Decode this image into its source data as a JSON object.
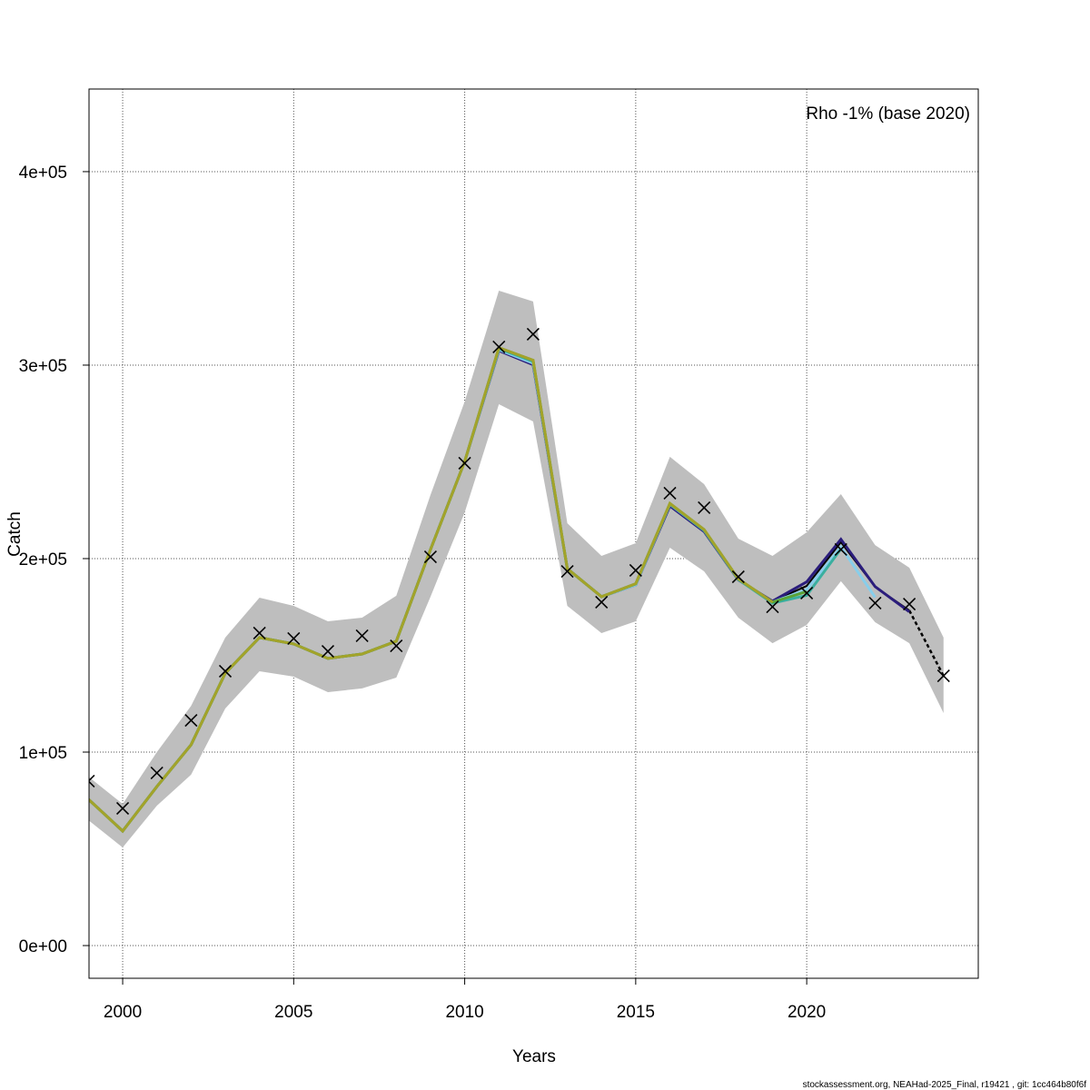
{
  "chart_data": {
    "type": "line",
    "title": "",
    "xlabel": "Years",
    "ylabel": "Catch",
    "xlim": [
      1999,
      2025
    ],
    "ylim": [
      -16900,
      442700
    ],
    "grid": true,
    "x_ticks": [
      2000,
      2005,
      2010,
      2015,
      2020
    ],
    "x_tick_labels": [
      "2000",
      "2005",
      "2010",
      "2015",
      "2020"
    ],
    "y_ticks": [
      0,
      100000,
      200000,
      300000,
      400000
    ],
    "y_tick_labels": [
      "0e+00",
      "1e+05",
      "2e+05",
      "3e+05",
      "4e+05"
    ],
    "annotation": "Rho -1% (base 2020)",
    "footer": "stockassessment.org, NEAHad-2025_Final, r19421 , git: 1cc464b80f6f",
    "years": [
      1999,
      2000,
      2001,
      2002,
      2003,
      2004,
      2005,
      2006,
      2007,
      2008,
      2009,
      2010,
      2011,
      2012,
      2013,
      2014,
      2015,
      2016,
      2017,
      2018,
      2019,
      2020,
      2021,
      2022,
      2023,
      2024
    ],
    "observed": [
      85000,
      70900,
      89200,
      116400,
      141800,
      161500,
      158700,
      152100,
      160100,
      154900,
      200900,
      249300,
      309400,
      316000,
      193400,
      177500,
      193900,
      233800,
      226300,
      190600,
      175100,
      182200,
      204700,
      177000,
      176500,
      139400
    ],
    "estimate": [
      75600,
      59200,
      82200,
      103800,
      140800,
      159200,
      155900,
      148400,
      150700,
      157300,
      204700,
      250200,
      308500,
      301900,
      194800,
      180300,
      186400,
      228200,
      214600,
      189200,
      177900,
      185900,
      208500,
      185400,
      173200,
      139400
    ],
    "ci_upper": [
      87300,
      73200,
      100000,
      123900,
      159200,
      179800,
      175600,
      167600,
      169500,
      180800,
      232900,
      281200,
      338500,
      332900,
      218300,
      201400,
      208000,
      252600,
      238500,
      210300,
      201400,
      213600,
      233300,
      207000,
      195300,
      159200
    ],
    "ci_lower": [
      64800,
      50700,
      72300,
      88300,
      122500,
      141800,
      139000,
      131000,
      132900,
      138500,
      180300,
      223900,
      279800,
      270900,
      175600,
      161500,
      167600,
      205600,
      193400,
      169500,
      156300,
      165700,
      188300,
      167100,
      156300,
      120200
    ],
    "band_color": "#bebebe",
    "estimate_color": "#000000",
    "observed_marker": "x",
    "peels": [
      {
        "color": "#2b1d7c",
        "values": [
          75600,
          59200,
          82200,
          103800,
          140800,
          159200,
          155900,
          148400,
          150700,
          157300,
          204700,
          250200,
          307500,
          300200,
          194800,
          180300,
          186400,
          227200,
          214000,
          189000,
          178000,
          188000,
          210000,
          185500,
          172500
        ]
      },
      {
        "color": "#87ceeb",
        "values": [
          75600,
          59200,
          82200,
          103800,
          140800,
          159200,
          155900,
          148400,
          150700,
          157300,
          204700,
          250200,
          308000,
          301000,
          194800,
          180300,
          186400,
          228000,
          214600,
          189200,
          177500,
          184000,
          206000,
          180000
        ]
      },
      {
        "color": "#3aaf9f",
        "values": [
          75600,
          59200,
          82200,
          103800,
          140800,
          159200,
          155900,
          148400,
          150700,
          157300,
          204700,
          250200,
          308500,
          301900,
          194800,
          180300,
          186900,
          228200,
          214600,
          189200,
          177000,
          181000,
          205000
        ]
      },
      {
        "color": "#5aa336",
        "values": [
          75600,
          59200,
          82200,
          103800,
          140800,
          159200,
          155900,
          148400,
          150700,
          157300,
          204700,
          250200,
          309000,
          302500,
          194800,
          180300,
          187000,
          228500,
          215000,
          189500,
          177500,
          183000
        ]
      },
      {
        "color": "#a3a32a",
        "values": [
          75600,
          59200,
          82200,
          103800,
          140800,
          159200,
          155900,
          148400,
          150700,
          157300,
          204700,
          250200,
          309000,
          302500,
          194800,
          180300,
          187000,
          228500,
          215000,
          189500,
          177500
        ]
      }
    ]
  }
}
